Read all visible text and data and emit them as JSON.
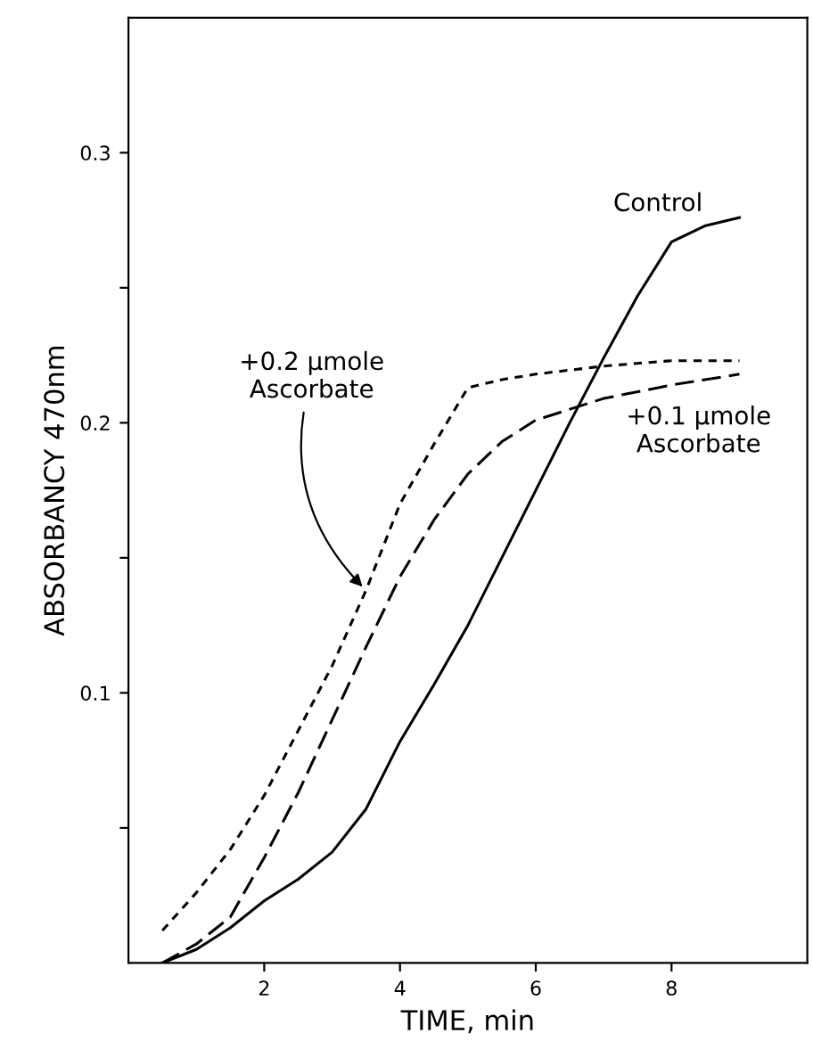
{
  "chart_data": {
    "type": "line",
    "xlabel": "TIME, min",
    "ylabel": "ABSORBANCY 470nm",
    "xlim": [
      0,
      10
    ],
    "xticks": [
      2,
      4,
      6,
      8
    ],
    "ylim": [
      0,
      0.35
    ],
    "yticks": [
      {
        "value": 0.05,
        "label": null
      },
      {
        "value": 0.1,
        "label": "0.1"
      },
      {
        "value": 0.15,
        "label": null
      },
      {
        "value": 0.2,
        "label": "0.2"
      },
      {
        "value": 0.25,
        "label": null
      },
      {
        "value": 0.3,
        "label": "0.3"
      }
    ],
    "grid": false,
    "legend": false,
    "marker": "none",
    "series": [
      {
        "name": "Control",
        "color": "#000000",
        "line_style": "solid",
        "x": [
          0.5,
          1,
          1.5,
          2,
          2.5,
          3,
          3.5,
          4,
          4.5,
          5,
          5.5,
          6,
          6.5,
          7,
          7.5,
          8,
          8.5,
          9
        ],
        "values": [
          0,
          0.005,
          0.013,
          0.023,
          0.031,
          0.041,
          0.057,
          0.082,
          0.103,
          0.125,
          0.15,
          0.175,
          0.2,
          0.224,
          0.247,
          0.267,
          0.273,
          0.276
        ]
      },
      {
        "name": "+0.2 μmole\nAscorbate",
        "color": "#000000",
        "line_style": "dotted",
        "x": [
          0.5,
          1,
          1.5,
          2,
          2.5,
          3,
          3.5,
          4,
          4.5,
          5,
          5.5,
          6,
          7,
          8,
          9
        ],
        "values": [
          0.012,
          0.026,
          0.042,
          0.062,
          0.086,
          0.11,
          0.138,
          0.17,
          0.192,
          0.213,
          0.216,
          0.218,
          0.221,
          0.223,
          0.223
        ]
      },
      {
        "name": "+0.1 μmole\nAscorbate",
        "color": "#000000",
        "line_style": "dashed",
        "x": [
          0.5,
          1,
          1.5,
          2,
          2.5,
          3,
          3.5,
          4,
          4.5,
          5,
          5.5,
          6,
          7,
          8,
          9
        ],
        "values": [
          0,
          0.007,
          0.017,
          0.039,
          0.063,
          0.09,
          0.117,
          0.143,
          0.164,
          0.181,
          0.193,
          0.201,
          0.209,
          0.214,
          0.218
        ]
      }
    ]
  }
}
